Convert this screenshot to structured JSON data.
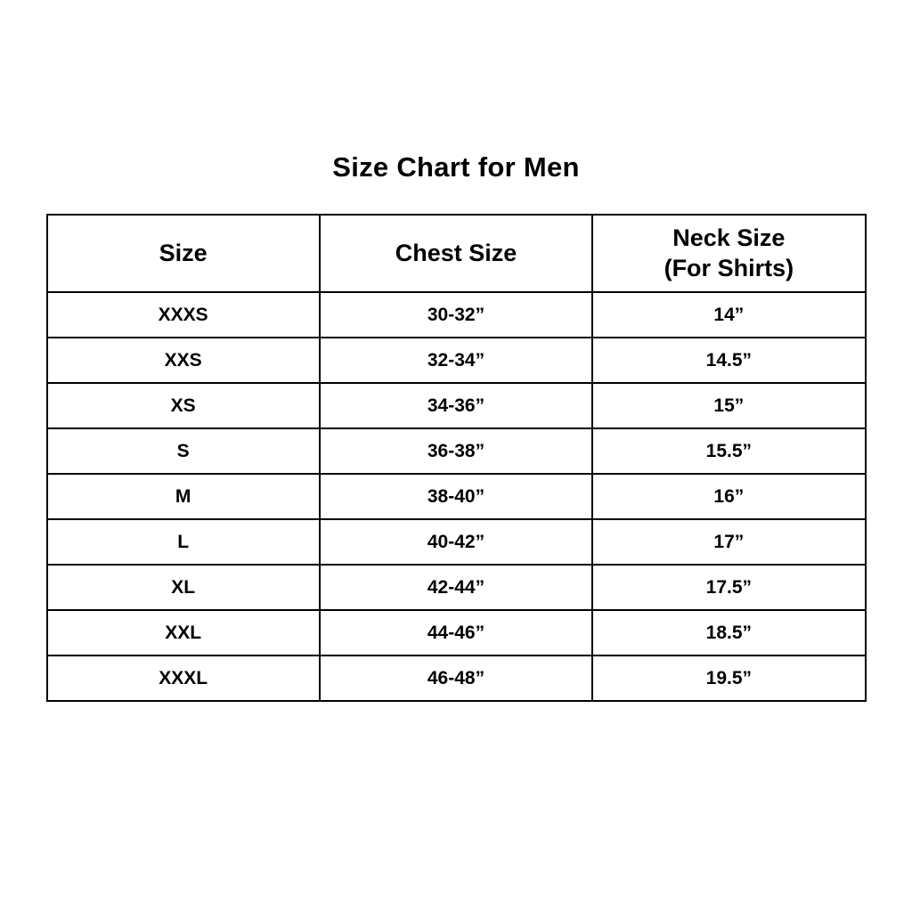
{
  "page": {
    "title": "Size Chart for Men",
    "background_color": "#ffffff",
    "text_color": "#000000",
    "border_color": "#000000"
  },
  "table": {
    "headers": [
      {
        "line1": "Size",
        "line2": ""
      },
      {
        "line1": "Chest Size",
        "line2": ""
      },
      {
        "line1": "Neck Size",
        "line2": "(For Shirts)"
      }
    ],
    "rows": [
      {
        "cells": [
          "XXXS",
          "30-32”",
          "14”"
        ]
      },
      {
        "cells": [
          "XXS",
          "32-34”",
          "14.5”"
        ]
      },
      {
        "cells": [
          "XS",
          "34-36”",
          "15”"
        ]
      },
      {
        "cells": [
          "S",
          "36-38”",
          "15.5”"
        ]
      },
      {
        "cells": [
          "M",
          "38-40”",
          "16”"
        ]
      },
      {
        "cells": [
          "L",
          "40-42”",
          "17”"
        ]
      },
      {
        "cells": [
          "XL",
          "42-44”",
          "17.5”"
        ]
      },
      {
        "cells": [
          "XXL",
          "44-46”",
          "18.5”"
        ]
      },
      {
        "cells": [
          "XXXL",
          "46-48”",
          "19.5”"
        ]
      }
    ]
  },
  "chart_data": {
    "type": "table",
    "title": "Size Chart for Men",
    "columns": [
      "Size",
      "Chest Size",
      "Neck Size (For Shirts)"
    ],
    "rows": [
      [
        "XXXS",
        "30-32”",
        "14”"
      ],
      [
        "XXS",
        "32-34”",
        "14.5”"
      ],
      [
        "XS",
        "34-36”",
        "15”"
      ],
      [
        "S",
        "36-38”",
        "15.5”"
      ],
      [
        "M",
        "38-40”",
        "16”"
      ],
      [
        "L",
        "40-42”",
        "17”"
      ],
      [
        "XL",
        "42-44”",
        "17.5”"
      ],
      [
        "XXL",
        "44-46”",
        "18.5”"
      ],
      [
        "XXXL",
        "46-48”",
        "19.5”"
      ]
    ]
  }
}
